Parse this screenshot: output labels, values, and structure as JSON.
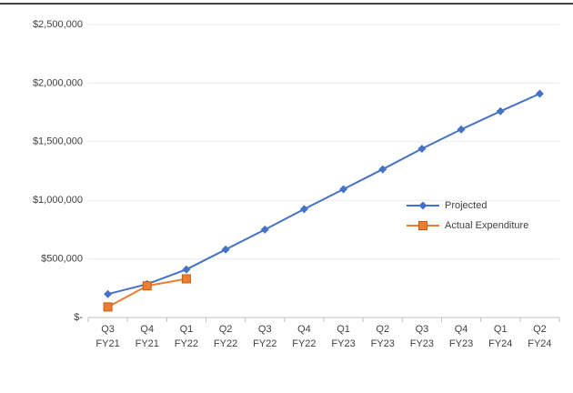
{
  "chart_data": {
    "type": "line",
    "categories": [
      "Q3 FY21",
      "Q4 FY21",
      "Q1 FY22",
      "Q2 FY22",
      "Q3 FY22",
      "Q4 FY22",
      "Q1 FY23",
      "Q2 FY23",
      "Q3 FY23",
      "Q4 FY23",
      "Q1 FY24",
      "Q2 FY24"
    ],
    "series": [
      {
        "name": "Projected",
        "color": "#4472c4",
        "marker": "diamond",
        "values": [
          200000,
          285000,
          410000,
          580000,
          750000,
          925000,
          1095000,
          1265000,
          1440000,
          1605000,
          1760000,
          1910000
        ]
      },
      {
        "name": "Actual Expenditure",
        "color": "#ed7d31",
        "marker": "square",
        "values": [
          90000,
          270000,
          330000,
          null,
          null,
          null,
          null,
          null,
          null,
          null,
          null,
          null
        ]
      }
    ],
    "ylim": [
      0,
      2500000
    ],
    "yticks": [
      {
        "value": 0,
        "label": "$-"
      },
      {
        "value": 500000,
        "label": "$500,000"
      },
      {
        "value": 1000000,
        "label": "$1,000,000"
      },
      {
        "value": 1500000,
        "label": "$1,500,000"
      },
      {
        "value": 2000000,
        "label": "$2,000,000"
      },
      {
        "value": 2500000,
        "label": "$2,500,000"
      }
    ],
    "grid": true,
    "legend": "right"
  }
}
